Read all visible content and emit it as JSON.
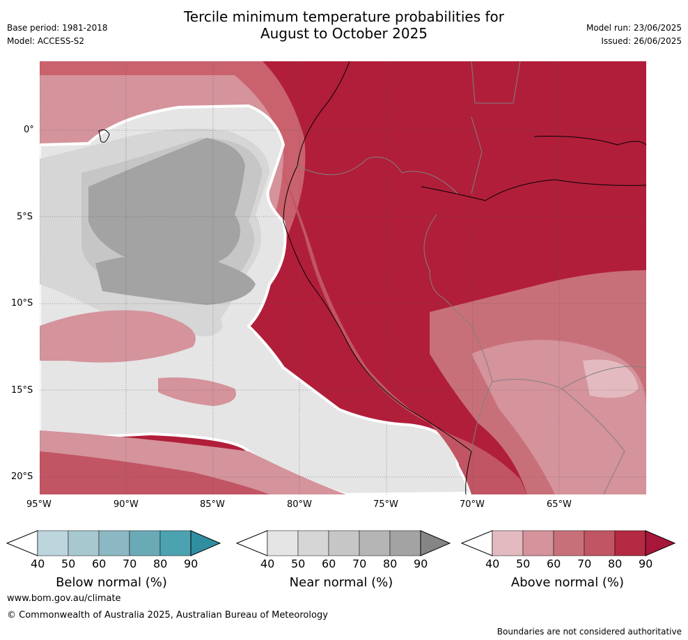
{
  "header": {
    "base_period": "Base period: 1981-2018",
    "model": "Model: ACCESS-S2",
    "title_line1": "Tercile minimum temperature probabilities for",
    "title_line2": "August to October 2025",
    "model_run": "Model run: 23/06/2025",
    "issued": "Issued: 26/06/2025"
  },
  "map": {
    "lat_labels": [
      "0°",
      "5°S",
      "10°S",
      "15°S",
      "20°S"
    ],
    "lon_labels": [
      "95°W",
      "90°W",
      "85°W",
      "80°W",
      "75°W",
      "70°W",
      "65°W"
    ]
  },
  "colorbars": [
    {
      "title": "Below normal (%)",
      "ticks": [
        "40",
        "50",
        "60",
        "70",
        "80",
        "90"
      ],
      "colors": [
        "#ffffff",
        "#bdd5dc",
        "#a8c8d0",
        "#8bb8c3",
        "#6aaab6",
        "#4ca2b1",
        "#2f8ea0"
      ]
    },
    {
      "title": "Near normal (%)",
      "ticks": [
        "40",
        "50",
        "60",
        "70",
        "80",
        "90"
      ],
      "colors": [
        "#ffffff",
        "#e5e5e5",
        "#d6d6d6",
        "#c6c6c6",
        "#b5b5b5",
        "#a3a3a3",
        "#858585"
      ]
    },
    {
      "title": "Above normal (%)",
      "ticks": [
        "40",
        "50",
        "60",
        "70",
        "80",
        "90"
      ],
      "colors": [
        "#ffffff",
        "#e3bac0",
        "#d5939c",
        "#c87079",
        "#c15563",
        "#b42a43",
        "#a8173a"
      ]
    }
  ],
  "footer": {
    "website": "www.bom.gov.au/climate",
    "copyright": "© Commonwealth of Australia 2025, Australian Bureau of Meteorology",
    "disclaimer": "Boundaries are not considered authoritative"
  }
}
